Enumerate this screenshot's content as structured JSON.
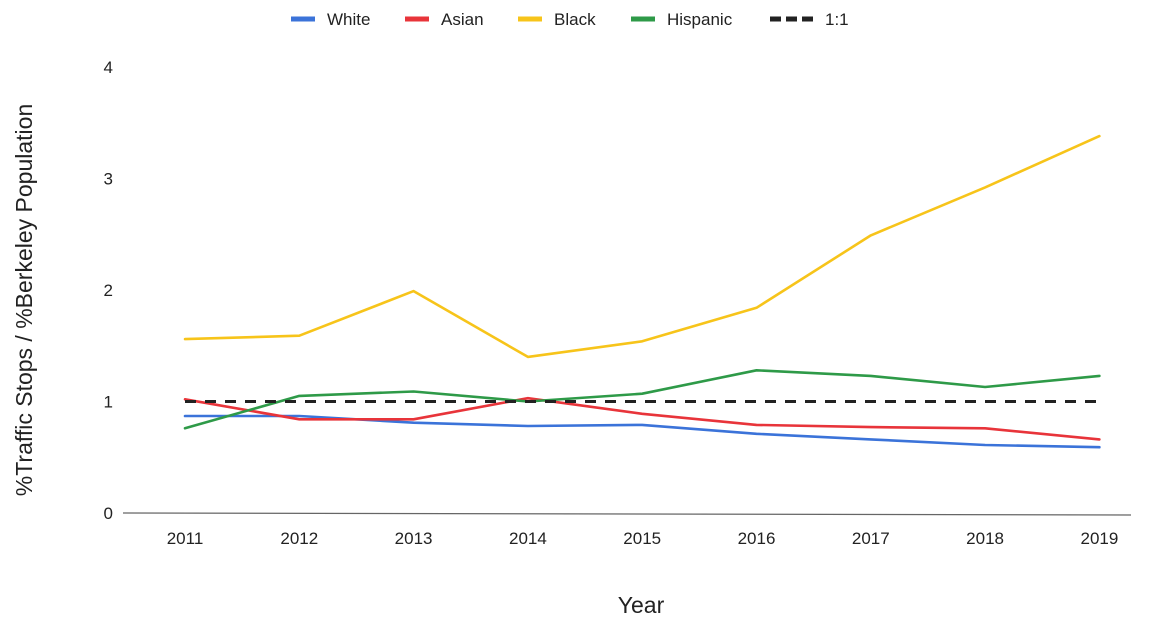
{
  "chart_data": {
    "type": "line",
    "title": "",
    "xlabel": "Year",
    "ylabel": "%Traffic Stops / %Berkeley Population",
    "categories": [
      "2011",
      "2012",
      "2013",
      "2014",
      "2015",
      "2016",
      "2017",
      "2018",
      "2019"
    ],
    "ylim": [
      0,
      4
    ],
    "yticks": [
      "0",
      "1",
      "2",
      "3",
      "4"
    ],
    "grid": false,
    "legend_position": "top",
    "series": [
      {
        "name": "White",
        "color": "#3b73d9",
        "dashed": false,
        "values": [
          0.87,
          0.87,
          0.81,
          0.78,
          0.79,
          0.71,
          0.66,
          0.61,
          0.59
        ]
      },
      {
        "name": "Asian",
        "color": "#e8343a",
        "dashed": false,
        "values": [
          1.02,
          0.84,
          0.84,
          1.03,
          0.89,
          0.79,
          0.77,
          0.76,
          0.66
        ]
      },
      {
        "name": "Black",
        "color": "#f7c41a",
        "dashed": false,
        "values": [
          1.56,
          1.59,
          1.99,
          1.4,
          1.54,
          1.84,
          2.49,
          2.92,
          3.38
        ]
      },
      {
        "name": "Hispanic",
        "color": "#2e9a48",
        "dashed": false,
        "values": [
          0.76,
          1.05,
          1.09,
          1.0,
          1.07,
          1.28,
          1.23,
          1.13,
          1.23
        ]
      },
      {
        "name": "1:1",
        "color": "#222222",
        "dashed": true,
        "values": [
          1,
          1,
          1,
          1,
          1,
          1,
          1,
          1,
          1
        ]
      }
    ]
  }
}
